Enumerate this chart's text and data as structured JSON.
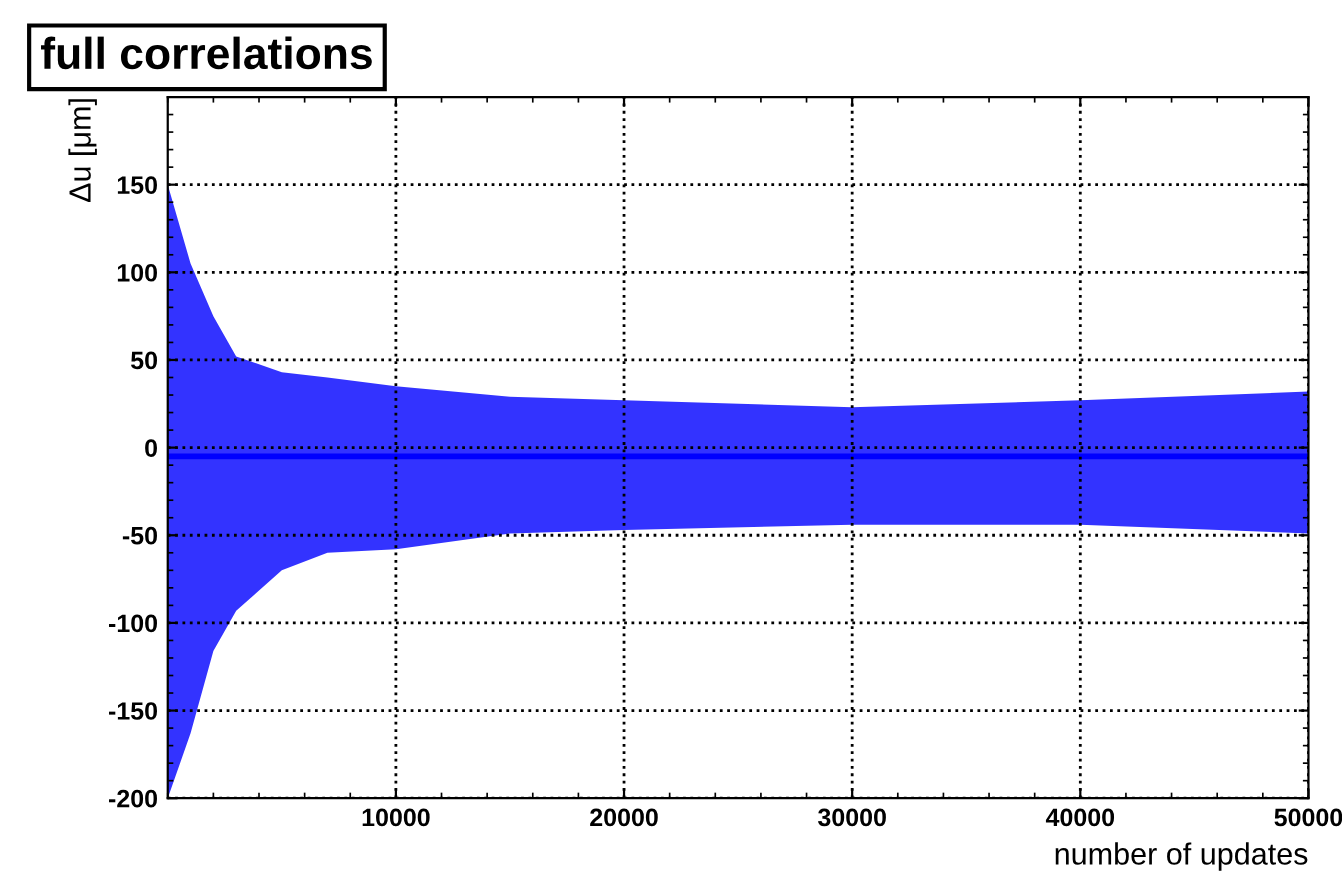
{
  "chart_data": {
    "type": "line",
    "title": "full correlations",
    "xlabel": "number of updates",
    "ylabel": "Δu [μm]",
    "x": [
      0,
      1000,
      2000,
      3000,
      5000,
      7000,
      10000,
      15000,
      20000,
      30000,
      40000,
      50000
    ],
    "series": [
      {
        "color": "#0000ff",
        "values": [
          -5,
          -5,
          -5,
          -5,
          -5,
          -5,
          -5,
          -5,
          -5,
          -5,
          -5,
          -5
        ],
        "lower": [
          -200,
          -163,
          -116,
          -93,
          -70,
          -60,
          -58,
          -49,
          -47,
          -44,
          -44,
          -49
        ],
        "upper": [
          150,
          105,
          75,
          52,
          43,
          40,
          35,
          29,
          27,
          23,
          27,
          32
        ]
      }
    ],
    "xlim": [
      0,
      50000
    ],
    "ylim": [
      -200,
      200
    ],
    "xticks": [
      10000,
      20000,
      30000,
      40000,
      50000
    ],
    "yticks": [
      -200,
      -150,
      -100,
      -50,
      0,
      50,
      100,
      150
    ],
    "grid": true
  }
}
